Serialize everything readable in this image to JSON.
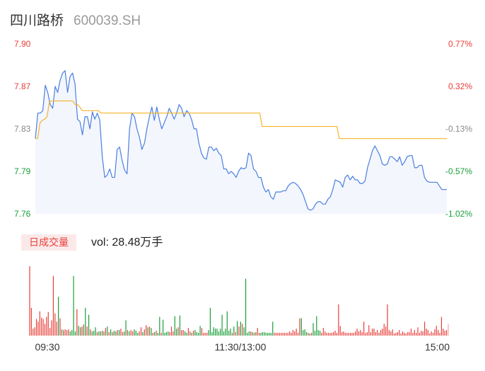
{
  "header": {
    "name": "四川路桥",
    "code": "600039.SH"
  },
  "volume_panel": {
    "tag_label": "日成交量",
    "vol_label": "vol: 28.48万手"
  },
  "colors": {
    "price_line": "#4a7fe0",
    "avg_line": "#f5b32b",
    "area_fill": "#f3f6fd",
    "up": "#e8403b",
    "down": "#1a9e3a",
    "axis_text_neutral": "#888888",
    "time_text": "#333333"
  },
  "chart_data": [
    {
      "type": "line",
      "title": "",
      "y_left_ticks": [
        "7.90",
        "7.87",
        "7.83",
        "7.79",
        "7.76"
      ],
      "y_right_ticks": [
        "0.77%",
        "0.32%",
        "-0.13%",
        "-0.57%",
        "-1.02%"
      ],
      "ylim": [
        7.76,
        7.9
      ],
      "x_labels": [
        "09:30",
        "11:30/13:00",
        "15:00"
      ],
      "series": [
        {
          "values": [
            7.822,
            7.843,
            7.843,
            7.845,
            7.866,
            7.86,
            7.85,
            7.847,
            7.865,
            7.86,
            7.87,
            7.876,
            7.878,
            7.86,
            7.873,
            7.876,
            7.867,
            7.838,
            7.836,
            7.825,
            7.84,
            7.84,
            7.83,
            7.844,
            7.838,
            7.843,
            7.837,
            7.807,
            7.79,
            7.792,
            7.797,
            7.79,
            7.79,
            7.813,
            7.815,
            7.804,
            7.796,
            7.793,
            7.83,
            7.843,
            7.84,
            7.83,
            7.823,
            7.813,
            7.818,
            7.83,
            7.84,
            7.848,
            7.837,
            7.848,
            7.838,
            7.83,
            7.835,
            7.84,
            7.847,
            7.843,
            7.838,
            7.843,
            7.85,
            7.847,
            7.84,
            7.845,
            7.843,
            7.838,
            7.83,
            7.83,
            7.818,
            7.81,
            7.806,
            7.805,
            7.815,
            7.815,
            7.812,
            7.814,
            7.81,
            7.808,
            7.797,
            7.797,
            7.793,
            7.795,
            7.793,
            7.79,
            7.795,
            7.798,
            7.797,
            7.798,
            7.81,
            7.808,
            7.797,
            7.795,
            7.79,
            7.79,
            7.782,
            7.778,
            7.78,
            7.774,
            7.772,
            7.778,
            7.778,
            7.778,
            7.779,
            7.779,
            7.783,
            7.785,
            7.786,
            7.785,
            7.783,
            7.78,
            7.776,
            7.77,
            7.764,
            7.763,
            7.764,
            7.768,
            7.77,
            7.77,
            7.768,
            7.768,
            7.772,
            7.774,
            7.78,
            7.788,
            7.787,
            7.786,
            7.782,
            7.79,
            7.792,
            7.788,
            7.791,
            7.788,
            7.788,
            7.785,
            7.785,
            7.787,
            7.798,
            7.805,
            7.812,
            7.816,
            7.812,
            7.808,
            7.801,
            7.8,
            7.801,
            7.807,
            7.807,
            7.805,
            7.803,
            7.807,
            7.8,
            7.803,
            7.807,
            7.808,
            7.808,
            7.798,
            7.798,
            7.8,
            7.8,
            7.79,
            7.787,
            7.786,
            7.786,
            7.786,
            7.786,
            7.783,
            7.78,
            7.78,
            7.78
          ]
        },
        {
          "values": [
            7.822,
            7.822,
            7.835,
            7.837,
            7.838,
            7.84,
            7.852,
            7.853,
            7.853,
            7.853,
            7.853,
            7.853,
            7.853,
            7.853,
            7.853,
            7.853,
            7.853,
            7.85,
            7.85,
            7.848,
            7.845,
            7.845,
            7.845,
            7.845,
            7.845,
            7.845,
            7.845,
            7.845,
            7.843,
            7.843,
            7.843,
            7.843,
            7.843,
            7.843,
            7.843,
            7.843,
            7.843,
            7.843,
            7.843,
            7.843,
            7.843,
            7.843,
            7.843,
            7.843,
            7.843,
            7.843,
            7.843,
            7.843,
            7.843,
            7.843,
            7.843,
            7.843,
            7.843,
            7.843,
            7.843,
            7.843,
            7.843,
            7.843,
            7.843,
            7.843,
            7.843,
            7.843,
            7.843,
            7.843,
            7.843,
            7.843,
            7.843,
            7.843,
            7.843,
            7.843,
            7.843,
            7.843,
            7.843,
            7.843,
            7.843,
            7.843,
            7.843,
            7.843,
            7.843,
            7.843,
            7.843,
            7.843,
            7.843,
            7.843,
            7.843,
            7.843,
            7.843,
            7.843,
            7.843,
            7.843,
            7.843,
            7.843,
            7.843,
            7.843,
            7.843,
            7.843,
            7.843,
            7.832,
            7.832,
            7.832,
            7.832,
            7.832,
            7.832,
            7.832,
            7.832,
            7.832,
            7.832,
            7.832,
            7.832,
            7.832,
            7.832,
            7.832,
            7.832,
            7.832,
            7.832,
            7.832,
            7.832,
            7.832,
            7.832,
            7.832,
            7.832,
            7.832,
            7.832,
            7.832,
            7.832,
            7.832,
            7.832,
            7.832,
            7.832,
            7.832,
            7.822,
            7.822,
            7.822,
            7.822,
            7.822,
            7.822,
            7.822,
            7.822,
            7.822,
            7.822,
            7.822,
            7.822,
            7.822,
            7.822,
            7.822,
            7.822,
            7.822,
            7.822,
            7.822,
            7.822,
            7.822,
            7.822,
            7.822,
            7.822,
            7.822,
            7.822,
            7.822,
            7.822,
            7.822,
            7.822,
            7.822,
            7.822,
            7.822,
            7.822,
            7.822,
            7.822,
            7.822,
            7.822,
            7.822,
            7.822,
            7.822,
            7.822,
            7.822,
            7.822,
            7.822,
            7.822,
            7.822
          ]
        }
      ]
    },
    {
      "type": "bar",
      "title": "",
      "ylim": [
        0,
        100
      ],
      "values": [
        100,
        40,
        10,
        12,
        24,
        20,
        35,
        26,
        24,
        17,
        27,
        34,
        11,
        22,
        86,
        32,
        20,
        56,
        25,
        9,
        8,
        9,
        8,
        9,
        6,
        8,
        86,
        6,
        38,
        14,
        12,
        13,
        16,
        40,
        13,
        30,
        9,
        6,
        7,
        12,
        5,
        6,
        6,
        7,
        6,
        11,
        13,
        5,
        9,
        5,
        7,
        6,
        8,
        8,
        10,
        5,
        6,
        22,
        8,
        6,
        8,
        6,
        9,
        7,
        4,
        6,
        12,
        5,
        9,
        15,
        12,
        13,
        11,
        4,
        5,
        7,
        4,
        27,
        4,
        23,
        4,
        5,
        6,
        5,
        13,
        6,
        28,
        10,
        12,
        29,
        8,
        8,
        6,
        4,
        11,
        6,
        4,
        7,
        8,
        5,
        4,
        14,
        11,
        4,
        4,
        4,
        8,
        40,
        5,
        12,
        10,
        10,
        6,
        10,
        30,
        6,
        10,
        35,
        7,
        10,
        4,
        13,
        5,
        21,
        13,
        20,
        17,
        12,
        82,
        4,
        6,
        6,
        5,
        4,
        5,
        11,
        4,
        4,
        5,
        5,
        4,
        4,
        4,
        4,
        20,
        4,
        4,
        4,
        4,
        4,
        4,
        4,
        4,
        4,
        6,
        4,
        8,
        6,
        10,
        4,
        25,
        25,
        8,
        9,
        5,
        4,
        3,
        4,
        18,
        7,
        28,
        8,
        7,
        4,
        11,
        6,
        4,
        4,
        4,
        4,
        5,
        7,
        4,
        45,
        14,
        5,
        6,
        4,
        4,
        4,
        4,
        4,
        4,
        6,
        10,
        6,
        8,
        5,
        20,
        4,
        5,
        15,
        5,
        10,
        10,
        5,
        8,
        4,
        8,
        10,
        17,
        13,
        45,
        8,
        6,
        9,
        3,
        4,
        5,
        8,
        3,
        6,
        4,
        3,
        5,
        5,
        10,
        4,
        8,
        4,
        12,
        4,
        7,
        6,
        20,
        10,
        8,
        3,
        6,
        4,
        9,
        14,
        8,
        4,
        27,
        10,
        7,
        8,
        17
      ],
      "colors": [
        "up",
        "up",
        "up",
        "up",
        "up",
        "up",
        "up",
        "up",
        "up",
        "up",
        "up",
        "up",
        "up",
        "up",
        "up",
        "up",
        "up",
        "down",
        "up",
        "up",
        "down",
        "up",
        "up",
        "up",
        "down",
        "down",
        "down",
        "down",
        "up",
        "down",
        "up",
        "down",
        "up",
        "down",
        "up",
        "down",
        "up",
        "down",
        "down",
        "down",
        "up",
        "down",
        "down",
        "up",
        "down",
        "up",
        "down",
        "up",
        "down",
        "up",
        "down",
        "down",
        "up",
        "down",
        "up",
        "up",
        "down",
        "down",
        "up",
        "down",
        "up",
        "up",
        "down",
        "down",
        "down",
        "up",
        "up",
        "down",
        "up",
        "up",
        "down",
        "up",
        "down",
        "up",
        "down",
        "up",
        "down",
        "down",
        "up",
        "down",
        "down",
        "down",
        "down",
        "up",
        "up",
        "up",
        "down",
        "down",
        "up",
        "down",
        "up",
        "up",
        "down",
        "down",
        "up",
        "up",
        "down",
        "up",
        "down",
        "down",
        "down",
        "down",
        "up",
        "up",
        "up",
        "up",
        "down",
        "down",
        "down",
        "down",
        "down",
        "down",
        "down",
        "down",
        "down",
        "down",
        "down",
        "down",
        "down",
        "down",
        "up",
        "down",
        "up",
        "down",
        "up",
        "down",
        "up",
        "down",
        "down",
        "down",
        "down",
        "up",
        "down",
        "up",
        "down",
        "up",
        "up",
        "down",
        "down",
        "down",
        "down",
        "down",
        "down",
        "down",
        "down",
        "up",
        "up",
        "up",
        "up",
        "up",
        "up",
        "up",
        "up",
        "up",
        "up",
        "up",
        "up",
        "up",
        "up",
        "up",
        "up",
        "down",
        "down",
        "down",
        "down",
        "up",
        "down",
        "up",
        "down",
        "down",
        "down",
        "down",
        "down",
        "up",
        "up",
        "up",
        "up",
        "up",
        "up",
        "up",
        "up",
        "up",
        "up",
        "up",
        "up",
        "up",
        "up",
        "up",
        "up",
        "up",
        "up",
        "up",
        "up",
        "up",
        "up",
        "up",
        "up",
        "up",
        "up",
        "up",
        "up",
        "up",
        "up",
        "up",
        "up",
        "up",
        "up",
        "up",
        "up",
        "up",
        "up",
        "up",
        "up",
        "up",
        "up",
        "up",
        "up",
        "up",
        "up",
        "up",
        "up",
        "up",
        "up",
        "up",
        "up",
        "up",
        "up",
        "up",
        "up",
        "up",
        "up",
        "up",
        "up",
        "up",
        "up",
        "up",
        "up",
        "up",
        "up",
        "up",
        "up",
        "up",
        "up",
        "up",
        "up",
        "up",
        "up",
        "up",
        "up",
        "up"
      ]
    }
  ]
}
